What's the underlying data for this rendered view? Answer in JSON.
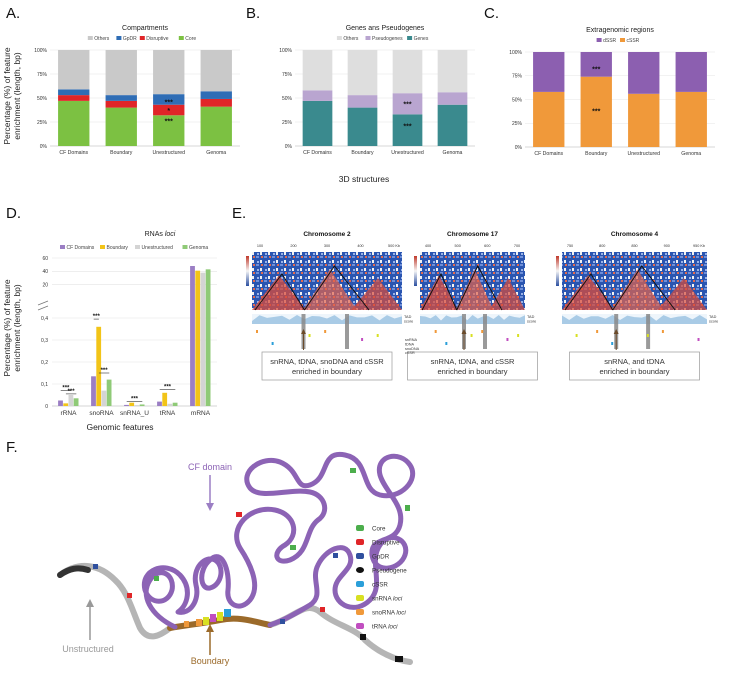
{
  "panel_labels": {
    "a": "A.",
    "b": "B.",
    "c": "C.",
    "d": "D.",
    "e": "E.",
    "f": "F."
  },
  "colors": {
    "others": "#c9c9c9",
    "gpdr": "#2f6db5",
    "disruptive": "#e02528",
    "core": "#7cc142",
    "pseudogenes": "#b9a5d0",
    "genes": "#3a8a8e",
    "dssr": "#8c5fb0",
    "cssr": "#f0993a",
    "cf_domains": "#9b7ec4",
    "boundary": "#f2c418",
    "unstructured": "#d4d4d4",
    "genoma": "#8fca77",
    "chromatin": "#8c63b5",
    "unstructured_fiber": "#b5b5b5",
    "boundary_fiber": "#9b6a2a"
  },
  "top_ylabel": [
    "Percentage (%) of feature",
    "enrichment (length, bp)"
  ],
  "top_xlabel": "3D structures",
  "chart_data": [
    {
      "id": "A",
      "type": "bar",
      "stacked": true,
      "title": "Compartments",
      "categories": [
        "CF Domains",
        "Boundary",
        "Unestructured",
        "Genoma"
      ],
      "yticks": [
        "0%",
        "25%",
        "50%",
        "75%",
        "100%"
      ],
      "ylim": [
        0,
        100
      ],
      "legend": "top",
      "series": [
        {
          "name": "Core",
          "color": "#7cc142",
          "values": [
            47,
            40,
            32,
            41
          ]
        },
        {
          "name": "Disruptive",
          "color": "#e02528",
          "values": [
            6,
            7,
            11,
            8
          ]
        },
        {
          "name": "GpDR",
          "color": "#2f6db5",
          "values": [
            6,
            6,
            11,
            8
          ]
        },
        {
          "name": "Others",
          "color": "#c9c9c9",
          "values": [
            41,
            47,
            46,
            43
          ]
        }
      ],
      "legend_order": [
        "Others",
        "GpDR",
        "Disruptive",
        "Core"
      ],
      "annotations": [
        {
          "category": 2,
          "y": 46,
          "text": "***"
        },
        {
          "category": 2,
          "y": 37,
          "text": "*"
        },
        {
          "category": 2,
          "y": 26,
          "text": "***"
        }
      ]
    },
    {
      "id": "B",
      "type": "bar",
      "stacked": true,
      "title": "Genes ans Pseudogenes",
      "categories": [
        "CF Domains",
        "Boundary",
        "Unestructured",
        "Genoma"
      ],
      "yticks": [
        "0%",
        "25%",
        "50%",
        "75%",
        "100%"
      ],
      "ylim": [
        0,
        100
      ],
      "legend": "top",
      "series": [
        {
          "name": "Genes",
          "color": "#3a8a8e",
          "values": [
            47,
            40,
            33,
            43
          ]
        },
        {
          "name": "Pseudogenes",
          "color": "#b9a5d0",
          "values": [
            11,
            13,
            22,
            13
          ]
        },
        {
          "name": "Others",
          "color": "#dedede",
          "values": [
            42,
            47,
            45,
            44
          ]
        }
      ],
      "legend_order": [
        "Others",
        "Pseudogenes",
        "Genes"
      ],
      "annotations": [
        {
          "category": 2,
          "y": 44,
          "text": "***"
        },
        {
          "category": 2,
          "y": 21,
          "text": "***"
        }
      ]
    },
    {
      "id": "C",
      "type": "bar",
      "stacked": true,
      "title": "Extragenomic regions",
      "categories": [
        "CF Domains",
        "Boundary",
        "Unestructured",
        "Genoma"
      ],
      "yticks": [
        "0%",
        "25%",
        "50%",
        "75%",
        "100%"
      ],
      "ylim": [
        0,
        100
      ],
      "legend": "top",
      "series": [
        {
          "name": "cSSR",
          "color": "#f0993a",
          "values": [
            58,
            74,
            56,
            58
          ]
        },
        {
          "name": "dSSR",
          "color": "#8c5fb0",
          "values": [
            42,
            26,
            44,
            42
          ]
        }
      ],
      "legend_order": [
        "dSSR",
        "cSSR"
      ],
      "annotations": [
        {
          "category": 1,
          "y": 82,
          "text": "***"
        },
        {
          "category": 1,
          "y": 38,
          "text": "***"
        }
      ]
    },
    {
      "id": "D",
      "type": "bar",
      "title": "RNAs loci",
      "title_main": "RNAs ",
      "title_italic": "loci",
      "categories": [
        "rRNA",
        "snoRNA",
        "snRNA_U",
        "tRNA",
        "mRNA"
      ],
      "xlabel": "Genomic features",
      "ylabel": [
        "Percentage (%) of feature",
        "enrichment (length, bp)"
      ],
      "yticks_lower": [
        "0",
        "0,1",
        "0,2",
        "0,3",
        "0,4"
      ],
      "yticks_upper": [
        "20",
        "40",
        "60"
      ],
      "axis_break": true,
      "legend": "top",
      "series": [
        {
          "name": "CF Domains",
          "color": "#9b7ec4",
          "values": [
            0.025,
            0.135,
            0.005,
            0.02,
            48
          ]
        },
        {
          "name": "Boundary",
          "color": "#f2c418",
          "values": [
            0.012,
            0.36,
            0.015,
            0.06,
            41
          ]
        },
        {
          "name": "Unestructured",
          "color": "#d4d4d4",
          "values": [
            0.05,
            0.07,
            0.004,
            0.01,
            38
          ]
        },
        {
          "name": "Genoma",
          "color": "#8fca77",
          "values": [
            0.035,
            0.12,
            0.007,
            0.015,
            43
          ]
        }
      ],
      "significance": [
        {
          "category": 0,
          "level": 0.07,
          "span": [
            0,
            2
          ],
          "text": "***"
        },
        {
          "category": 0,
          "level": 0.055,
          "span": [
            1,
            3
          ],
          "text": "***"
        },
        {
          "category": 1,
          "level": 0.395,
          "span": [
            0,
            1
          ],
          "text": "***"
        },
        {
          "category": 1,
          "level": 0.15,
          "span": [
            1,
            3
          ],
          "text": "***"
        },
        {
          "category": 2,
          "level": 0.02,
          "span": [
            0,
            3
          ],
          "text": "***"
        },
        {
          "category": 3,
          "level": 0.075,
          "span": [
            0,
            3
          ],
          "text": "***"
        }
      ]
    }
  ],
  "hic": [
    {
      "title": "Chromosome 2",
      "ticks": [
        "100",
        "200",
        "300",
        "400",
        "500 Kb"
      ],
      "box": "snRNA, tDNA, snoDNA and cSSR enriched in boundary",
      "box_lines": [
        "snRNA, tDNA, snoDNA and cSSR",
        "enriched in boundary"
      ]
    },
    {
      "title": "Chromosome 17",
      "ticks": [
        "400",
        "500",
        "600",
        "700"
      ],
      "box": "snRNA, tDNA, and cSSR enriched in boundary",
      "box_lines": [
        "snRNA, tDNA, and cSSR",
        "enriched in boundary"
      ]
    },
    {
      "title": "Chromosome 4",
      "ticks": [
        "750",
        "800",
        "850",
        "900",
        "950 Kb"
      ],
      "box": "snRNA, and tDNA enriched in boundary",
      "box_lines": [
        "snRNA, and tDNA",
        "enriched in boundary"
      ]
    }
  ],
  "hic_track_labels": {
    "tad": [
      "TAD",
      "score"
    ],
    "features": [
      "snRNA",
      "tDNA",
      "snoDNA",
      "cSSR"
    ]
  },
  "cf": {
    "domain_label": "CF domain",
    "unstructured_label": "Unstructured",
    "boundary_label": "Boundary",
    "legend": [
      {
        "name": "Core",
        "color": "#4cae4c"
      },
      {
        "name": "Disruptive",
        "color": "#e02528"
      },
      {
        "name": "GpDR",
        "color": "#2f4f9e"
      },
      {
        "name": "Pseudogene",
        "color": "#111111"
      },
      {
        "name": "cSSR",
        "color": "#2b9fd9"
      },
      {
        "name": "snRNA loci",
        "main": "snRNA ",
        "italic": "loci",
        "color": "#d8e022"
      },
      {
        "name": "snoRNA loci",
        "main": "snoRNA ",
        "italic": "loci",
        "color": "#f0993a"
      },
      {
        "name": "tRNA loci",
        "main": "tRNA ",
        "italic": "loci",
        "color": "#c14ec0"
      }
    ]
  }
}
